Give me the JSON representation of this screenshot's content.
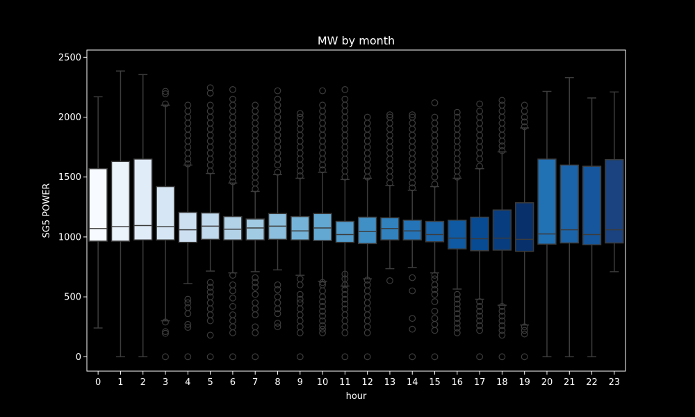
{
  "chart_data": {
    "type": "box",
    "title": "MW by month",
    "xlabel": "hour",
    "ylabel": "SG5 POWER",
    "ylim": [
      -120,
      2560
    ],
    "yticks": [
      0,
      500,
      1000,
      1500,
      2000,
      2500
    ],
    "categories": [
      "0",
      "1",
      "2",
      "3",
      "4",
      "5",
      "6",
      "7",
      "8",
      "9",
      "10",
      "11",
      "12",
      "13",
      "14",
      "15",
      "16",
      "17",
      "18",
      "19",
      "20",
      "21",
      "22",
      "23"
    ],
    "grid": false,
    "colormap": "Blues",
    "box_colors": [
      "#f7fbff",
      "#ebf3fb",
      "#e0ecf8",
      "#d6e6f4",
      "#cde0f1",
      "#c1d9ed",
      "#b2d2e8",
      "#a0cbe2",
      "#8bbfdd",
      "#75b4d8",
      "#62a8d2",
      "#519ccc",
      "#4190c5",
      "#3282be",
      "#2474b7",
      "#1a67ae",
      "#0f5aa3",
      "#084b93",
      "#083d7f",
      "#08306b",
      "#2171b5",
      "#1c64aa",
      "#16569c",
      "#1a437f"
    ],
    "whisker_color": "#3c3c3c",
    "median_color": "#3c3c3c",
    "boxes": [
      {
        "hour": "0",
        "whislo": 240,
        "q1": 965,
        "med": 1070,
        "q3": 1570,
        "whishi": 2170,
        "fliers": []
      },
      {
        "hour": "1",
        "whislo": 0,
        "q1": 965,
        "med": 1085,
        "q3": 1630,
        "whishi": 2385,
        "fliers": []
      },
      {
        "hour": "2",
        "whislo": 0,
        "q1": 975,
        "med": 1095,
        "q3": 1650,
        "whishi": 2355,
        "fliers": []
      },
      {
        "hour": "3",
        "whislo": 300,
        "q1": 975,
        "med": 1085,
        "q3": 1420,
        "whishi": 2100,
        "fliers": [
          0,
          195,
          210,
          290,
          2110,
          2195,
          2215
        ]
      },
      {
        "hour": "4",
        "whislo": 610,
        "q1": 955,
        "med": 1060,
        "q3": 1205,
        "whishi": 1600,
        "fliers": [
          0,
          245,
          270,
          360,
          410,
          450,
          480,
          1610,
          1650,
          1700,
          1750,
          1800,
          1850,
          1900,
          1950,
          2000,
          2050,
          2100
        ]
      },
      {
        "hour": "5",
        "whislo": 715,
        "q1": 980,
        "med": 1090,
        "q3": 1200,
        "whishi": 1530,
        "fliers": [
          0,
          180,
          300,
          350,
          400,
          450,
          500,
          540,
          580,
          620,
          1550,
          1600,
          1650,
          1700,
          1750,
          1800,
          1850,
          1900,
          1950,
          2000,
          2050,
          2100,
          2200,
          2245
        ]
      },
      {
        "hour": "6",
        "whislo": 700,
        "q1": 975,
        "med": 1065,
        "q3": 1170,
        "whishi": 1450,
        "fliers": [
          0,
          200,
          250,
          300,
          350,
          420,
          490,
          550,
          600,
          680,
          1460,
          1500,
          1550,
          1600,
          1650,
          1700,
          1750,
          1800,
          1850,
          1900,
          1950,
          2000,
          2050,
          2100,
          2150,
          2230
        ]
      },
      {
        "hour": "7",
        "whislo": 710,
        "q1": 975,
        "med": 1075,
        "q3": 1150,
        "whishi": 1380,
        "fliers": [
          0,
          200,
          250,
          350,
          400,
          450,
          520,
          580,
          620,
          660,
          1400,
          1450,
          1500,
          1550,
          1600,
          1650,
          1700,
          1750,
          1800,
          1850,
          1900,
          1950,
          2000,
          2050,
          2100
        ]
      },
      {
        "hour": "8",
        "whislo": 725,
        "q1": 980,
        "med": 1090,
        "q3": 1195,
        "whishi": 1520,
        "fliers": [
          250,
          280,
          360,
          400,
          450,
          500,
          560,
          600,
          1540,
          1600,
          1650,
          1700,
          1750,
          1800,
          1850,
          1900,
          1950,
          2000,
          2050,
          2100,
          2150,
          2220
        ]
      },
      {
        "hour": "9",
        "whislo": 680,
        "q1": 975,
        "med": 1050,
        "q3": 1170,
        "whishi": 1490,
        "fliers": [
          0,
          200,
          250,
          300,
          350,
          400,
          450,
          480,
          520,
          600,
          650,
          1510,
          1550,
          1600,
          1650,
          1700,
          1750,
          1800,
          1850,
          1900,
          1950,
          2000,
          2030
        ]
      },
      {
        "hour": "10",
        "whislo": 630,
        "q1": 970,
        "med": 1075,
        "q3": 1195,
        "whishi": 1540,
        "fliers": [
          200,
          230,
          260,
          300,
          340,
          380,
          420,
          460,
          500,
          550,
          600,
          620,
          1560,
          1600,
          1650,
          1700,
          1750,
          1800,
          1850,
          1900,
          1950,
          2000,
          2050,
          2100,
          2220
        ]
      },
      {
        "hour": "11",
        "whislo": 590,
        "q1": 955,
        "med": 1020,
        "q3": 1130,
        "whishi": 1480,
        "fliers": [
          0,
          200,
          250,
          300,
          350,
          400,
          440,
          480,
          520,
          560,
          600,
          650,
          690,
          1500,
          1550,
          1600,
          1650,
          1700,
          1750,
          1800,
          1850,
          1900,
          1950,
          2000,
          2050,
          2100,
          2150,
          2230
        ]
      },
      {
        "hour": "12",
        "whislo": 650,
        "q1": 945,
        "med": 1045,
        "q3": 1165,
        "whishi": 1490,
        "fliers": [
          0,
          200,
          250,
          300,
          350,
          400,
          450,
          500,
          550,
          600,
          640,
          1500,
          1550,
          1600,
          1650,
          1700,
          1750,
          1800,
          1850,
          1900,
          1950,
          2000
        ]
      },
      {
        "hour": "13",
        "whislo": 735,
        "q1": 975,
        "med": 1070,
        "q3": 1160,
        "whishi": 1430,
        "fliers": [
          635,
          1450,
          1500,
          1550,
          1600,
          1650,
          1700,
          1750,
          1800,
          1850,
          1900,
          1950,
          2000,
          2020
        ]
      },
      {
        "hour": "14",
        "whislo": 745,
        "q1": 975,
        "med": 1050,
        "q3": 1140,
        "whishi": 1390,
        "fliers": [
          0,
          230,
          320,
          550,
          660,
          1410,
          1450,
          1500,
          1550,
          1600,
          1650,
          1700,
          1750,
          1800,
          1850,
          1900,
          1950,
          2000,
          2020
        ]
      },
      {
        "hour": "15",
        "whislo": 700,
        "q1": 960,
        "med": 1020,
        "q3": 1130,
        "whishi": 1420,
        "fliers": [
          0,
          220,
          270,
          320,
          380,
          460,
          520,
          560,
          600,
          650,
          680,
          1440,
          1500,
          1550,
          1600,
          1650,
          1700,
          1750,
          1800,
          1850,
          1900,
          1950,
          2000,
          2120
        ]
      },
      {
        "hour": "16",
        "whislo": 565,
        "q1": 900,
        "med": 990,
        "q3": 1140,
        "whishi": 1490,
        "fliers": [
          200,
          240,
          280,
          320,
          360,
          400,
          440,
          480,
          520,
          1500,
          1550,
          1600,
          1650,
          1700,
          1750,
          1800,
          1850,
          1900,
          1950,
          2000,
          2040
        ]
      },
      {
        "hour": "17",
        "whislo": 480,
        "q1": 885,
        "med": 985,
        "q3": 1165,
        "whishi": 1570,
        "fliers": [
          0,
          220,
          260,
          300,
          340,
          380,
          420,
          460,
          1590,
          1650,
          1700,
          1750,
          1800,
          1850,
          1900,
          1950,
          2000,
          2050,
          2110
        ]
      },
      {
        "hour": "18",
        "whislo": 430,
        "q1": 890,
        "med": 990,
        "q3": 1225,
        "whishi": 1710,
        "fliers": [
          0,
          180,
          220,
          260,
          300,
          340,
          380,
          420,
          1720,
          1760,
          1800,
          1850,
          1900,
          1950,
          2000,
          2050,
          2100,
          2140
        ]
      },
      {
        "hour": "19",
        "whislo": 265,
        "q1": 880,
        "med": 980,
        "q3": 1285,
        "whishi": 1910,
        "fliers": [
          0,
          190,
          220,
          250,
          1920,
          1960,
          2000,
          2050,
          2100
        ]
      },
      {
        "hour": "20",
        "whislo": 0,
        "q1": 940,
        "med": 1025,
        "q3": 1650,
        "whishi": 2215,
        "fliers": []
      },
      {
        "hour": "21",
        "whislo": 0,
        "q1": 950,
        "med": 1060,
        "q3": 1600,
        "whishi": 2330,
        "fliers": []
      },
      {
        "hour": "22",
        "whislo": 0,
        "q1": 935,
        "med": 1020,
        "q3": 1590,
        "whishi": 2160,
        "fliers": []
      },
      {
        "hour": "23",
        "whislo": 710,
        "q1": 950,
        "med": 1060,
        "q3": 1645,
        "whishi": 2210,
        "fliers": []
      }
    ]
  }
}
